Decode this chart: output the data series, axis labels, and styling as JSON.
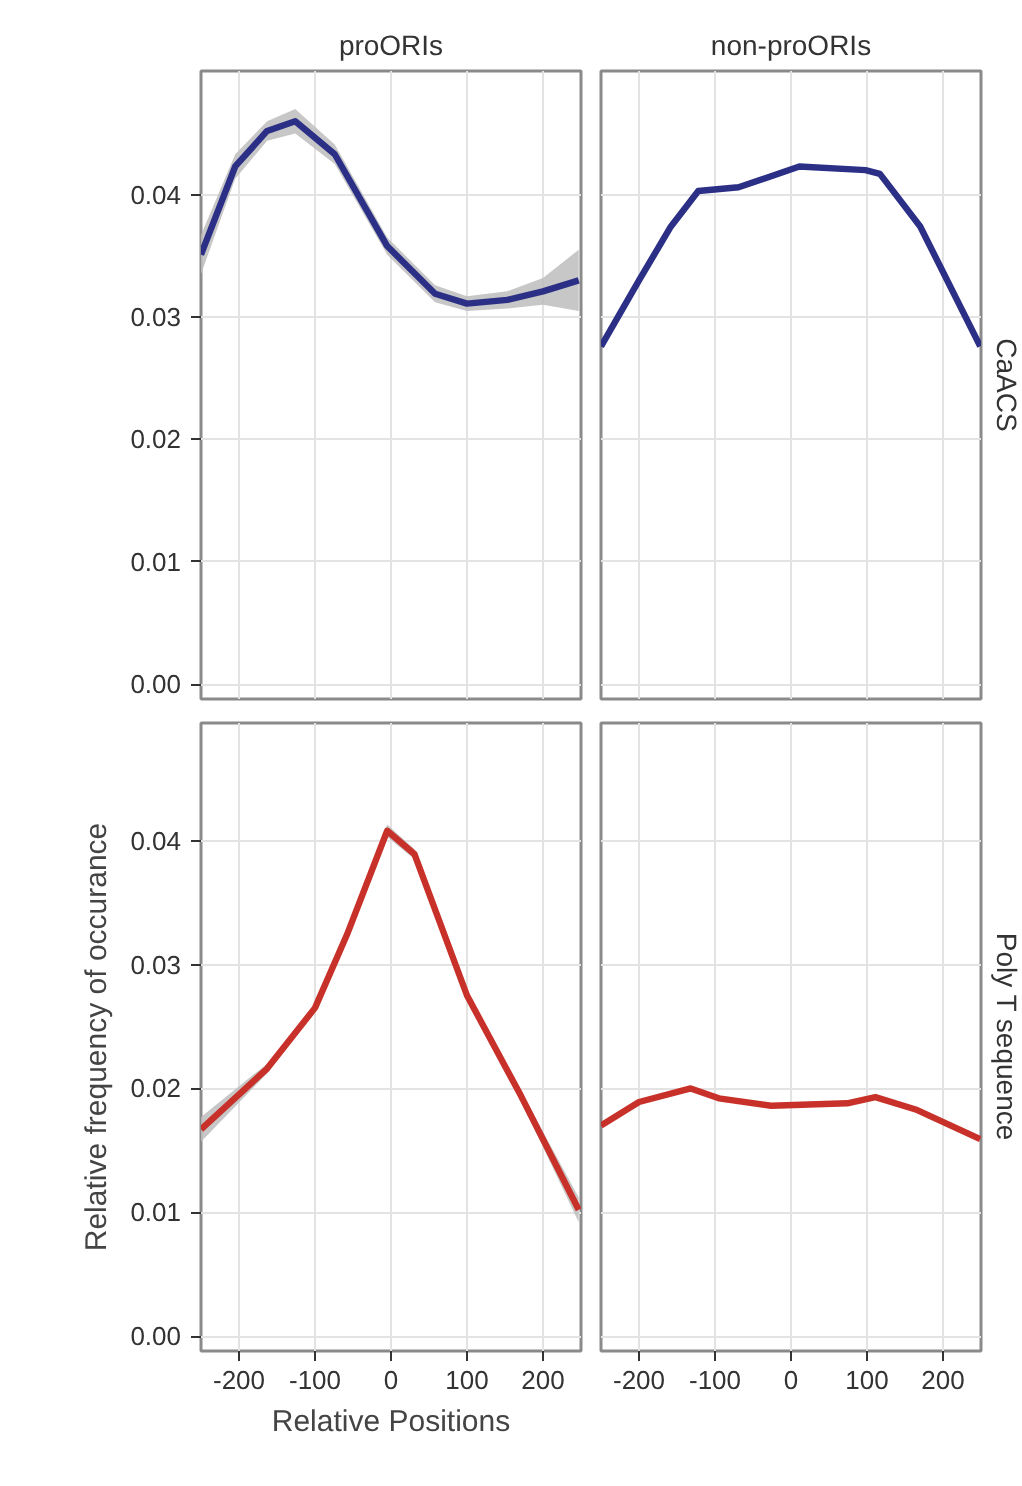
{
  "chart_data": [
    {
      "type": "line",
      "title": "proORIs",
      "x": [
        -250,
        -205,
        -163,
        -126,
        -74,
        -5,
        58,
        100,
        153,
        200,
        247
      ],
      "xlim": [
        -250,
        250
      ],
      "ylim": [
        -0.0012,
        0.0501
      ],
      "xticks": [
        -200,
        -100,
        0,
        100,
        200
      ],
      "yticks": [
        {
          "value": 0,
          "label": "0.00"
        },
        0.01,
        0.02,
        0.03,
        0.04
      ],
      "tick_labels": "y",
      "grid": true,
      "series": [
        {
          "color": "#2b2f86",
          "values": [
            0.0351,
            0.0423,
            0.0452,
            0.046,
            0.0433,
            0.0358,
            0.0319,
            0.0311,
            0.0314,
            0.0321,
            0.033
          ],
          "lower": [
            0.0335,
            0.0413,
            0.0444,
            0.045,
            0.0425,
            0.0351,
            0.0312,
            0.0305,
            0.0307,
            0.031,
            0.0305
          ],
          "upper": [
            0.0367,
            0.0433,
            0.046,
            0.047,
            0.0441,
            0.0365,
            0.0326,
            0.0317,
            0.0321,
            0.0332,
            0.0355
          ]
        }
      ]
    },
    {
      "type": "line",
      "title": "non-proORIs",
      "annotations": [
        "CaACS"
      ],
      "x": [
        -250,
        -200,
        -158,
        -122,
        -69,
        11,
        98,
        117,
        170,
        249
      ],
      "xlim": [
        -250,
        250
      ],
      "ylim": [
        -0.0012,
        0.0501
      ],
      "xticks": [
        -200,
        -100,
        0,
        100,
        200
      ],
      "yticks": [
        0,
        0.01,
        0.02,
        0.03,
        0.04
      ],
      "tick_labels": false,
      "grid": true,
      "series": [
        {
          "color": "#2b2f86",
          "values": [
            0.0276,
            0.033,
            0.0374,
            0.0403,
            0.0406,
            0.0423,
            0.042,
            0.0417,
            0.0374,
            0.0276
          ]
        }
      ]
    },
    {
      "type": "line",
      "xlabel": "Relative Positions",
      "ylabel": "Relative frequency of occurance",
      "x": [
        -250,
        -163,
        -100,
        -58,
        -5,
        31,
        100,
        171,
        247
      ],
      "xlim": [
        -250,
        250
      ],
      "ylim": [
        -0.0012,
        0.0495
      ],
      "xticks": [
        -200,
        -100,
        0,
        100,
        200
      ],
      "yticks": [
        {
          "value": 0,
          "label": "0.00"
        },
        0.01,
        0.02,
        0.03,
        0.04
      ],
      "grid": true,
      "series": [
        {
          "color": "#c8312a",
          "values": [
            0.0167,
            0.0216,
            0.0265,
            0.0324,
            0.0408,
            0.0389,
            0.0275,
            0.0194,
            0.0102
          ],
          "lower": [
            0.0157,
            0.0212,
            0.0262,
            0.0321,
            0.0403,
            0.0385,
            0.0272,
            0.019,
            0.0092
          ],
          "upper": [
            0.0177,
            0.022,
            0.0268,
            0.0327,
            0.0413,
            0.0393,
            0.0278,
            0.0198,
            0.0112
          ]
        }
      ]
    },
    {
      "type": "line",
      "annotations": [
        "Poly T sequence"
      ],
      "x": [
        -250,
        -200,
        -132,
        -95,
        -26,
        74,
        111,
        164,
        249
      ],
      "xlim": [
        -250,
        250
      ],
      "ylim": [
        -0.0012,
        0.0495
      ],
      "xticks": [
        -200,
        -100,
        0,
        100,
        200
      ],
      "yticks": [
        0,
        0.01,
        0.02,
        0.03,
        0.04
      ],
      "tick_labels": "x",
      "grid": true,
      "series": [
        {
          "color": "#c8312a",
          "values": [
            0.017,
            0.0189,
            0.02,
            0.0192,
            0.0186,
            0.0188,
            0.0193,
            0.0183,
            0.0159
          ]
        }
      ]
    }
  ]
}
